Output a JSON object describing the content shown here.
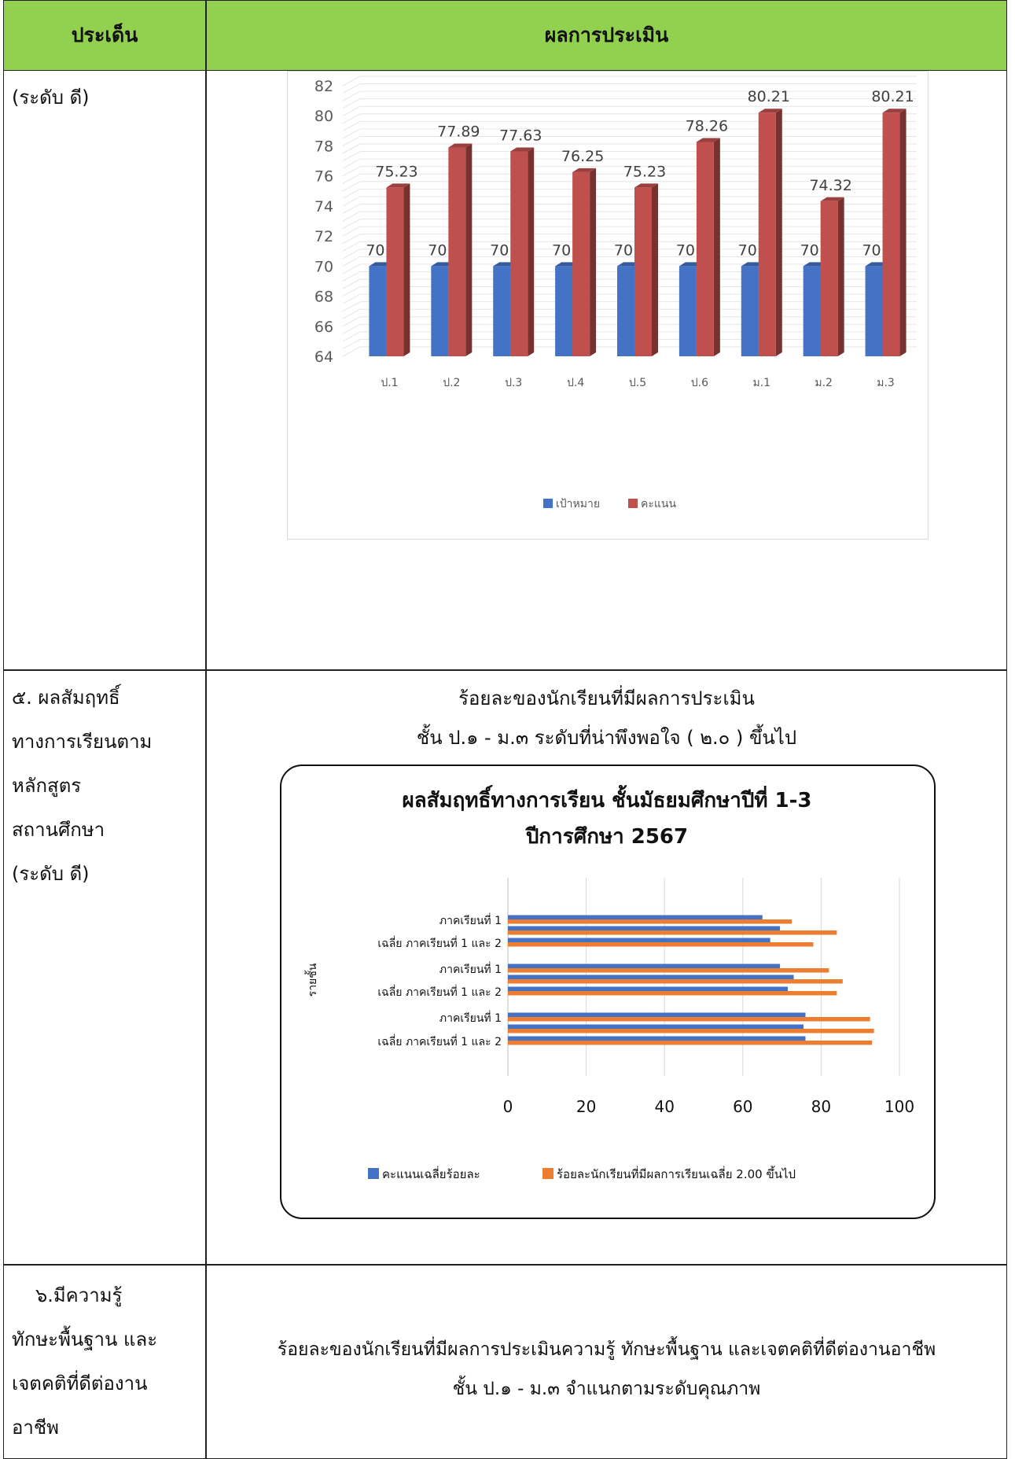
{
  "header": {
    "col1": "ประเด็น",
    "col2": "ผลการประเมิน"
  },
  "row1": {
    "left": [
      "(ระดับ ดี)"
    ]
  },
  "chart_data": [
    {
      "type": "bar",
      "categories": [
        "ป.1",
        "ป.2",
        "ป.3",
        "ป.4",
        "ป.5",
        "ป.6",
        "ม.1",
        "ม.2",
        "ม.3"
      ],
      "series": [
        {
          "name": "เป้าหมาย",
          "values": [
            70,
            70,
            70,
            70,
            70,
            70,
            70,
            70,
            70
          ],
          "color": "#4472c4"
        },
        {
          "name": "คะแนน",
          "values": [
            75.23,
            77.89,
            77.63,
            76.25,
            75.23,
            78.26,
            80.21,
            74.32,
            80.21
          ],
          "color": "#c0504d"
        }
      ],
      "ylim": [
        64,
        82
      ],
      "yticks": [
        "64",
        "66",
        "68",
        "70",
        "72",
        "74",
        "76",
        "78",
        "80",
        "82"
      ],
      "grid": true,
      "legend": "bottom"
    },
    {
      "type": "bar",
      "orientation": "horizontal",
      "title": [
        "ผลสัมฤทธิ์ทางการเรียน ชั้นมัธยมศึกษาปีที่ 1-3",
        "ปีการศึกษา 2567"
      ],
      "ylabel": "รายชั้น",
      "categories": [
        "ภาคเรียนที่ 1",
        "",
        "เฉลี่ย ภาคเรียนที่ 1 และ 2",
        "ภาคเรียนที่ 1",
        "",
        "เฉลี่ย ภาคเรียนที่ 1 และ 2",
        "ภาคเรียนที่ 1",
        "",
        "เฉลี่ย ภาคเรียนที่ 1 และ 2"
      ],
      "series": [
        {
          "name": "คะแนนเฉลี่ยร้อยละ",
          "values": [
            65,
            69.5,
            67,
            69.5,
            73,
            71.5,
            76,
            75.5,
            76
          ],
          "color": "#4472c4"
        },
        {
          "name": "ร้อยละนักเรียนที่มีผลการเรียนเฉลี่ย 2.00 ขึ้นไป",
          "values": [
            72.5,
            84,
            78,
            82,
            85.5,
            84,
            92.5,
            93.5,
            93
          ],
          "color": "#ed7d31"
        }
      ],
      "xlim": [
        0,
        100
      ],
      "xticks": [
        "0",
        "20",
        "40",
        "60",
        "80",
        "100"
      ],
      "grid": true,
      "legend": "bottom"
    }
  ],
  "row2": {
    "left": [
      "๕. ผลสัมฤทธิ์",
      "ทางการเรียนตาม",
      "หลักสูตร",
      "สถานศึกษา",
      "(ระดับ ดี)"
    ],
    "caption": [
      "ร้อยละของนักเรียนที่มีผลการประเมิน",
      "ชั้น ป.๑  - ม.๓ ระดับที่น่าพึงพอใจ  ( ๒.๐ ) ขึ้นไป"
    ]
  },
  "row3": {
    "left": [
      "๖.มีความรู้",
      "ทักษะพื้นฐาน และ",
      "เจตคติที่ดีต่องาน",
      "อาชีพ"
    ],
    "caption": [
      "ร้อยละของนักเรียนที่มีผลการประเมินความรู้ ทักษะพื้นฐาน และเจตคติที่ดีต่องานอาชีพ",
      "ชั้น ป.๑  - ม.๓ จำแนกตามระดับคุณภาพ"
    ]
  }
}
